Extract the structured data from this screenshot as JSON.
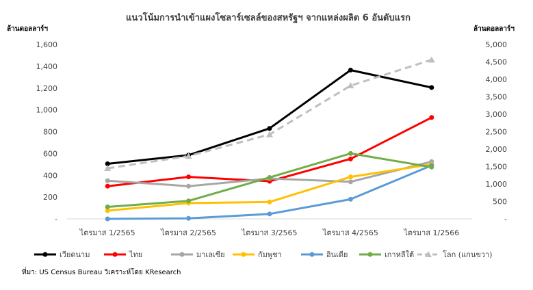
{
  "chart_data": {
    "type": "line",
    "title": "แนวโน้มการนำเข้าแผงโซลาร์เซลล์ของสหรัฐฯ จากแหล่งผลิต 6 อันดับแรก",
    "ylabel_left": "ล้านดอลลาร์ฯ",
    "ylabel_right": "ล้านดอลลาร์ฯ",
    "categories": [
      "ไตรมาส 1/2565",
      "ไตรมาส 2/2565",
      "ไตรมาส 3/2565",
      "ไตรมาส 4/2565",
      "ไตรมาส 1/2566"
    ],
    "y_left": {
      "min": 0,
      "max": 1600,
      "step": 200,
      "tick_labels": [
        "-",
        "200",
        "400",
        "600",
        "800",
        "1,000",
        "1,200",
        "1,400",
        "1,600"
      ]
    },
    "y_right": {
      "min": 0,
      "max": 5000,
      "step": 500,
      "tick_labels": [
        "-",
        "500",
        "1,000",
        "1,500",
        "2,000",
        "2,500",
        "3,000",
        "3,500",
        "4,000",
        "4,500",
        "5,000"
      ]
    },
    "grid": false,
    "legend_position": "bottom",
    "series": [
      {
        "name": "เวียดนาม",
        "color": "#000000",
        "axis": "left",
        "dashed": false,
        "marker": "circle",
        "values": [
          505,
          585,
          830,
          1365,
          1205
        ]
      },
      {
        "name": "ไทย",
        "color": "#ff0000",
        "axis": "left",
        "dashed": false,
        "marker": "circle",
        "values": [
          300,
          385,
          345,
          550,
          930
        ]
      },
      {
        "name": "มาเลเซีย",
        "color": "#a6a6a6",
        "axis": "left",
        "dashed": false,
        "marker": "circle",
        "values": [
          350,
          300,
          370,
          340,
          525
        ]
      },
      {
        "name": "กัมพูชา",
        "color": "#ffc000",
        "axis": "left",
        "dashed": false,
        "marker": "circle",
        "values": [
          75,
          145,
          155,
          385,
          500
        ]
      },
      {
        "name": "อินเดีย",
        "color": "#5b9bd5",
        "axis": "left",
        "dashed": false,
        "marker": "circle",
        "values": [
          0,
          5,
          45,
          180,
          490
        ]
      },
      {
        "name": "เกาหลีใต้",
        "color": "#70ad47",
        "axis": "left",
        "dashed": false,
        "marker": "circle",
        "values": [
          110,
          165,
          380,
          600,
          475
        ]
      },
      {
        "name": "โลก (แกนขวา)",
        "color": "#bfbfbf",
        "axis": "right",
        "dashed": true,
        "marker": "triangle",
        "values": [
          1450,
          1800,
          2420,
          3820,
          4560
        ]
      }
    ]
  },
  "source": "ที่มา: US Census Bureau วิเคราะห์โดย KResearch"
}
